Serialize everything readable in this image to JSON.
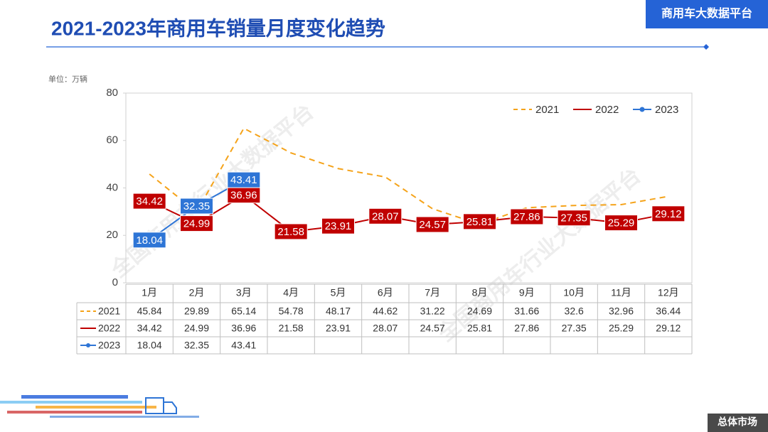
{
  "header": {
    "title": "2021-2023年商用车销量月度变化趋势",
    "platform": "商用车大数据平台",
    "section": "总体市场"
  },
  "chart_data": {
    "type": "line",
    "unit": "单位：万辆",
    "watermark": "全国商用车行业大数据平台",
    "categories": [
      "1月",
      "2月",
      "3月",
      "4月",
      "5月",
      "6月",
      "7月",
      "8月",
      "9月",
      "10月",
      "11月",
      "12月"
    ],
    "series": [
      {
        "name": "2021",
        "color": "#f5a31a",
        "dashed": true,
        "marker": false,
        "data_labels": false,
        "values": [
          45.84,
          29.89,
          65.14,
          54.78,
          48.17,
          44.62,
          31.22,
          24.69,
          31.66,
          32.6,
          32.96,
          36.44
        ]
      },
      {
        "name": "2022",
        "color": "#c00000",
        "dashed": false,
        "marker": false,
        "data_labels": true,
        "values": [
          34.42,
          24.99,
          36.96,
          21.58,
          23.91,
          28.07,
          24.57,
          25.81,
          27.86,
          27.35,
          25.29,
          29.12
        ]
      },
      {
        "name": "2023",
        "color": "#2e75d6",
        "dashed": false,
        "marker": true,
        "data_labels": true,
        "values": [
          18.04,
          32.35,
          43.41,
          null,
          null,
          null,
          null,
          null,
          null,
          null,
          null,
          null
        ]
      }
    ],
    "ylim": [
      0,
      80
    ],
    "yticks": [
      0,
      20,
      40,
      60,
      80
    ],
    "grid": false,
    "legend": "top-right",
    "data_table": true
  }
}
